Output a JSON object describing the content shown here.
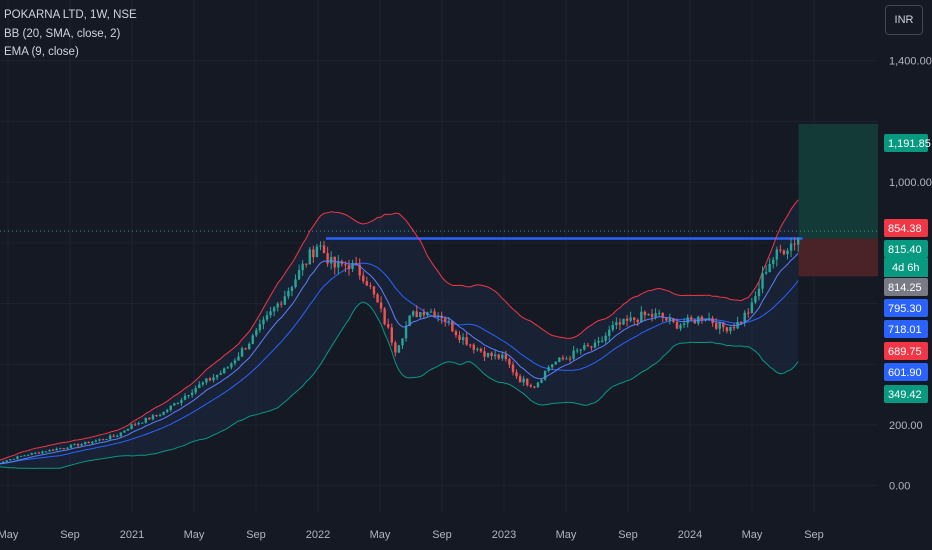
{
  "legend": {
    "symbol": "POKARNA LTD, 1W, NSE",
    "bb": "BB (20, SMA, close, 2)",
    "ema": "EMA (9, close)"
  },
  "currency": "INR",
  "colors": {
    "background": "#151924",
    "grid": "#1f2330",
    "up": "#26a69a",
    "down": "#ef5350",
    "bb_upper": "#f23645",
    "bb_lower": "#089981",
    "bb_basis": "#2962ff",
    "bb_fill": "#1e2a44",
    "ema": "#2962ff",
    "resistance": "#2962ff",
    "profit_zone": "#133a37",
    "loss_zone": "#4a2329"
  },
  "chart_data": {
    "type": "candlestick",
    "symbol": "POKARNA LTD",
    "interval": "1W",
    "exchange": "NSE",
    "y_range": [
      -90,
      1600
    ],
    "y_ticks": [
      0,
      200,
      400,
      600,
      800,
      1000,
      1200,
      1400
    ],
    "y_tick_labels": [
      "0.00",
      "200.00",
      "",
      "",
      "",
      "1,000.00",
      "",
      "1,400.00"
    ],
    "x_ticks": [
      {
        "label": "May",
        "date": "2020-05"
      },
      {
        "label": "Sep",
        "date": "2020-09"
      },
      {
        "label": "2021",
        "date": "2021-01"
      },
      {
        "label": "May",
        "date": "2021-05"
      },
      {
        "label": "Sep",
        "date": "2021-09"
      },
      {
        "label": "2022",
        "date": "2022-01"
      },
      {
        "label": "May",
        "date": "2022-05"
      },
      {
        "label": "Sep",
        "date": "2022-09"
      },
      {
        "label": "2023",
        "date": "2023-01"
      },
      {
        "label": "May",
        "date": "2023-05"
      },
      {
        "label": "Sep",
        "date": "2023-09"
      },
      {
        "label": "2024",
        "date": "2024-01"
      },
      {
        "label": "May",
        "date": "2024-05"
      },
      {
        "label": "Sep",
        "date": "2024-09"
      }
    ],
    "close_path": [
      [
        "2020-04",
        70
      ],
      [
        "2020-06",
        100
      ],
      [
        "2020-08",
        120
      ],
      [
        "2020-10",
        140
      ],
      [
        "2020-12",
        165
      ],
      [
        "2021-01",
        200
      ],
      [
        "2021-03",
        240
      ],
      [
        "2021-05",
        320
      ],
      [
        "2021-07",
        380
      ],
      [
        "2021-09",
        500
      ],
      [
        "2021-11",
        640
      ],
      [
        "2021-12",
        720
      ],
      [
        "2022-01",
        800
      ],
      [
        "2022-02",
        720
      ],
      [
        "2022-03",
        730
      ],
      [
        "2022-04",
        690
      ],
      [
        "2022-05",
        580
      ],
      [
        "2022-06",
        450
      ],
      [
        "2022-07",
        560
      ],
      [
        "2022-08",
        580
      ],
      [
        "2022-09",
        560
      ],
      [
        "2022-10",
        500
      ],
      [
        "2022-11",
        460
      ],
      [
        "2022-12",
        430
      ],
      [
        "2023-01",
        420
      ],
      [
        "2023-02",
        350
      ],
      [
        "2023-03",
        330
      ],
      [
        "2023-04",
        400
      ],
      [
        "2023-05",
        420
      ],
      [
        "2023-06",
        450
      ],
      [
        "2023-07",
        460
      ],
      [
        "2023-08",
        520
      ],
      [
        "2023-09",
        540
      ],
      [
        "2023-10",
        560
      ],
      [
        "2023-11",
        560
      ],
      [
        "2023-12",
        530
      ],
      [
        "2024-01",
        540
      ],
      [
        "2024-02",
        560
      ],
      [
        "2024-03",
        520
      ],
      [
        "2024-04",
        530
      ],
      [
        "2024-05",
        590
      ],
      [
        "2024-06",
        730
      ],
      [
        "2024-07",
        780
      ],
      [
        "2024-08",
        815
      ]
    ],
    "resistance_level": 814.25,
    "last_price": 815.4,
    "countdown": "4d 6h",
    "price_tags": [
      {
        "label": "1,191.85",
        "value": 1191.85,
        "color": "#089981"
      },
      {
        "label": "854.38",
        "value": 854.38,
        "color": "#f23645"
      },
      {
        "label": "815.40",
        "value": 815.4,
        "color": "#089981"
      },
      {
        "label": "814.25",
        "value": 814.25,
        "color": "#787b86"
      },
      {
        "label": "795.30",
        "value": 795.3,
        "color": "#2962ff"
      },
      {
        "label": "718.01",
        "value": 718.01,
        "color": "#2962ff"
      },
      {
        "label": "689.75",
        "value": 689.75,
        "color": "#f23645"
      },
      {
        "label": "601.90",
        "value": 601.9,
        "color": "#2962ff"
      },
      {
        "label": "349.42",
        "value": 349.42,
        "color": "#089981"
      }
    ],
    "position": {
      "entry": 814.25,
      "target": 1191.85,
      "stop": 689.75,
      "start": "2024-08"
    },
    "bollinger": {
      "period": 20,
      "ma": "SMA",
      "source": "close",
      "stddev": 2
    },
    "ema": {
      "period": 9,
      "source": "close"
    },
    "grid": true
  }
}
